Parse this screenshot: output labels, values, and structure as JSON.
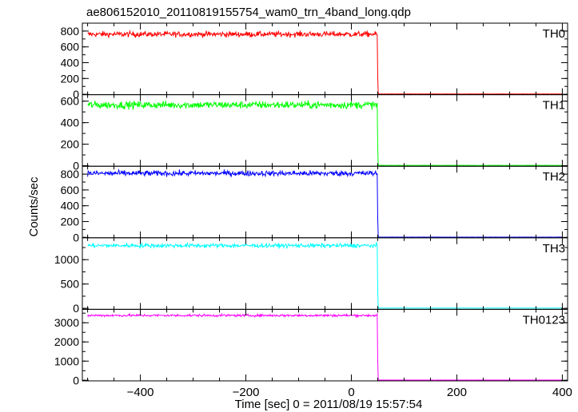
{
  "chart_data": {
    "type": "line",
    "title": "ae806152010_20110819155754_wam0_trn_4band_long.qdp",
    "xlabel": "Time [sec] 0 = 2011/08/19 15:57:54",
    "ylabel": "Counts/sec",
    "xlim": [
      -510,
      410
    ],
    "x_ticks": [
      -400,
      -200,
      0,
      200,
      400
    ],
    "x_tick_labels": [
      "−400",
      "−200",
      "0",
      "200",
      "400"
    ],
    "drop_time": 50,
    "x_start": -500,
    "x_end": 400,
    "grid": false,
    "series": [
      {
        "name": "TH0",
        "color": "#ff0000",
        "level": 760,
        "noise": 45,
        "post_level": 4,
        "ylim": [
          -5,
          900
        ],
        "y_ticks": [
          0,
          200,
          400,
          600,
          800
        ],
        "y_tick_labels": [
          "0",
          "200",
          "400",
          "600",
          "800"
        ]
      },
      {
        "name": "TH1",
        "color": "#00ff00",
        "level": 565,
        "noise": 45,
        "post_level": 3,
        "ylim": [
          -5,
          660
        ],
        "y_ticks": [
          0,
          200,
          400,
          600
        ],
        "y_tick_labels": [
          "0",
          "200",
          "400",
          "600"
        ]
      },
      {
        "name": "TH2",
        "color": "#0000ff",
        "level": 810,
        "noise": 45,
        "post_level": 3,
        "ylim": [
          -5,
          900
        ],
        "y_ticks": [
          0,
          200,
          400,
          600,
          800
        ],
        "y_tick_labels": [
          "0",
          "200",
          "400",
          "600",
          "800"
        ]
      },
      {
        "name": "TH3",
        "color": "#00ffff",
        "level": 1290,
        "noise": 55,
        "post_level": 5,
        "ylim": [
          -20,
          1450
        ],
        "y_ticks": [
          0,
          500,
          1000
        ],
        "y_tick_labels": [
          "0",
          "500",
          "1000"
        ]
      },
      {
        "name": "TH0123",
        "color": "#ff00ff",
        "level": 3380,
        "noise": 80,
        "post_level": 10,
        "ylim": [
          -30,
          3700
        ],
        "y_ticks": [
          0,
          1000,
          2000,
          3000
        ],
        "y_tick_labels": [
          "0",
          "1000",
          "2000",
          "3000"
        ]
      }
    ]
  }
}
